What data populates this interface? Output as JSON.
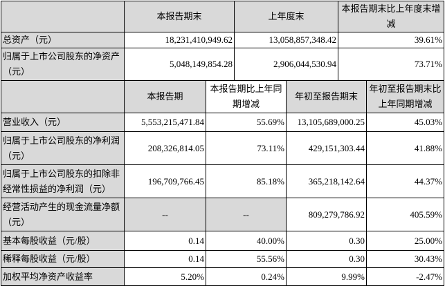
{
  "balance": {
    "headers": [
      "",
      "本报告期末",
      "上年度末",
      "本报告期末比上年度末增减"
    ],
    "rows": [
      {
        "label": "总资产（元）",
        "values": [
          "18,231,410,949.62",
          "13,058,857,348.42",
          "39.61%"
        ]
      },
      {
        "label": "归属于上市公司股东的净资产（元）",
        "values": [
          "5,048,149,854.28",
          "2,906,044,530.94",
          "73.71%"
        ]
      }
    ]
  },
  "income": {
    "headers": [
      "",
      "本报告期",
      "本报告期比上年同期增减",
      "年初至报告期末",
      "年初至报告期末比上年同期增减"
    ],
    "rows": [
      {
        "label": "营业收入（元）",
        "values": [
          "5,553,215,471.84",
          "55.69%",
          "13,105,689,000.25",
          "45.03%"
        ]
      },
      {
        "label": "归属于上市公司股东的净利润（元）",
        "values": [
          "208,326,814.05",
          "73.11%",
          "429,151,303.44",
          "41.88%"
        ]
      },
      {
        "label": "归属于上市公司股东的扣除非经常性损益的净利润（元）",
        "values": [
          "196,709,766.45",
          "85.18%",
          "365,218,142.64",
          "44.37%"
        ]
      },
      {
        "label": "经营活动产生的现金流量净额（元）",
        "values": [
          "--",
          "--",
          "809,279,786.92",
          "405.59%"
        ]
      },
      {
        "label": "基本每股收益（元/股）",
        "values": [
          "0.14",
          "40.00%",
          "0.30",
          "25.00%"
        ]
      },
      {
        "label": "稀释每股收益（元/股）",
        "values": [
          "0.14",
          "55.56%",
          "0.30",
          "30.43%"
        ]
      },
      {
        "label": "加权平均净资产收益率",
        "values": [
          "5.20%",
          "0.24%",
          "9.99%",
          "-2.47%"
        ]
      }
    ]
  },
  "colors": {
    "header_fill": "#d9d9d9",
    "border": "#000000"
  }
}
